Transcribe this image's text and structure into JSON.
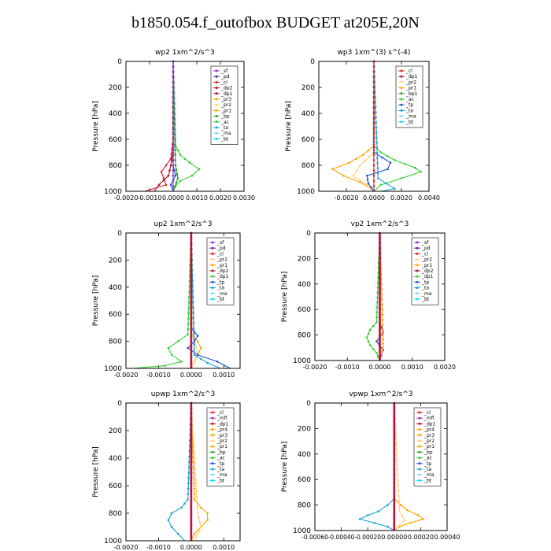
{
  "page_title": "b1850.054.f_outofbox  BUDGET at205E,20N",
  "colors": {
    "sf": "#9a2bd0",
    "pd": "#5a2a8a",
    "cl": "#e02020",
    "dp": "#b01030",
    "pr": "#ffa500",
    "pr_light": "#ffd27a",
    "bp": "#2f9b2f",
    "ac": "#2fd22f",
    "tp": "#2050d0",
    "ta": "#1aa3d8",
    "ma": "#7fd8f5",
    "bt": "#00e0ff",
    "prof": "#c0103a"
  },
  "chart_data": [
    {
      "type": "line",
      "title": "wp2   1xm^2/s^3",
      "ylabel": "Pressure  [hPa]",
      "xlim": [
        -0.002,
        0.003
      ],
      "ylim": [
        1000,
        0
      ],
      "xticks": [
        "-0.0020",
        "-0.0010",
        "0.0000",
        "0.0010",
        "0.0020",
        "0.0030"
      ],
      "xtick_values": [
        -0.002,
        -0.001,
        0.0,
        0.001,
        0.002,
        0.003
      ],
      "yticks": [
        "0",
        "200",
        "400",
        "600",
        "800",
        "1000"
      ],
      "legend": [
        "_sf",
        "_pd",
        "_cl",
        "_dp2",
        "_dp1",
        "_pr3",
        "_pr2",
        "_pr1",
        "_bp",
        "_ac",
        "_ta",
        "_ma",
        "_bt"
      ],
      "legend_colors": [
        "sf",
        "pd",
        "cl",
        "dp",
        "dp",
        "pr",
        "pr_light",
        "pr",
        "bp",
        "ac",
        "ta",
        "ma",
        "bt"
      ],
      "series": [
        {
          "color": "cl",
          "p": [
            0,
            600,
            750,
            800,
            850,
            900,
            950,
            1000
          ],
          "v": [
            0,
            0,
            -0.0001,
            -0.0003,
            -0.0005,
            -0.0004,
            -0.0003,
            -0.0012
          ]
        },
        {
          "color": "dp",
          "p": [
            0,
            700,
            800,
            880,
            950,
            1000
          ],
          "v": [
            0,
            0,
            -0.0001,
            -0.0002,
            -0.0006,
            -0.0008
          ]
        },
        {
          "color": "ac",
          "p": [
            0,
            650,
            720,
            780,
            830,
            880,
            920,
            960,
            1000
          ],
          "v": [
            0,
            0.0001,
            0.0003,
            0.0007,
            0.0011,
            0.0008,
            0.0003,
            0.0001,
            0
          ]
        },
        {
          "color": "bp",
          "p": [
            0,
            800,
            900,
            1000
          ],
          "v": [
            0,
            0.0001,
            0.0002,
            0
          ]
        },
        {
          "color": "tp",
          "p": [
            0,
            800,
            880,
            950,
            1000
          ],
          "v": [
            0,
            0,
            0.0001,
            -0.0001,
            0
          ]
        },
        {
          "color": "sf",
          "p": [
            0,
            1000
          ],
          "v": [
            0,
            0
          ]
        }
      ]
    },
    {
      "type": "line",
      "title": "wp3   1xm^(3) s^(-4)",
      "ylabel": "Pressure  [hPa]",
      "xlim": [
        -0.004,
        0.004
      ],
      "ylim": [
        1000,
        0
      ],
      "xticks": [
        "-0.0020",
        "0.0000",
        "0.0020",
        "0.0040"
      ],
      "xtick_values": [
        -0.002,
        0.0,
        0.002,
        0.004
      ],
      "yticks": [
        "0",
        "200",
        "400",
        "600",
        "800",
        "1000"
      ],
      "legend": [
        "_cl",
        "_dp1",
        "_pr2",
        "_pr1",
        "_bp1",
        "_ac",
        "_tp",
        "_ta",
        "_ma",
        "_bt"
      ],
      "legend_colors": [
        "cl",
        "dp",
        "pr_light",
        "pr",
        "bp",
        "ac",
        "tp",
        "ta",
        "ma",
        "bt"
      ],
      "series": [
        {
          "color": "ac",
          "p": [
            0,
            650,
            700,
            760,
            820,
            850,
            900,
            950,
            1000
          ],
          "v": [
            0,
            0,
            0.0005,
            0.0015,
            0.003,
            0.0034,
            0.002,
            0.0005,
            0
          ]
        },
        {
          "color": "pr",
          "p": [
            0,
            650,
            720,
            780,
            830,
            880,
            930,
            980,
            1000
          ],
          "v": [
            0,
            0,
            -0.0008,
            -0.0018,
            -0.003,
            -0.0022,
            -0.001,
            -0.0002,
            0
          ]
        },
        {
          "color": "pr_light",
          "p": [
            0,
            700,
            800,
            880,
            950,
            1000
          ],
          "v": [
            0,
            0,
            -0.001,
            -0.0015,
            -0.0005,
            0
          ]
        },
        {
          "color": "tp",
          "p": [
            0,
            700,
            780,
            830,
            880,
            940,
            1000
          ],
          "v": [
            0,
            0,
            0.0012,
            0.001,
            -0.0005,
            -0.0004,
            0
          ]
        },
        {
          "color": "ta",
          "p": [
            0,
            900,
            980,
            1000
          ],
          "v": [
            0,
            0.0003,
            0.0015,
            0.0005
          ]
        },
        {
          "color": "cl",
          "p": [
            0,
            1000
          ],
          "v": [
            0,
            0
          ]
        }
      ]
    },
    {
      "type": "line",
      "title": "up2   1xm^2/s^3",
      "ylabel": "Pressure  [hPa]",
      "xlim": [
        -0.002,
        0.0015
      ],
      "ylim": [
        1000,
        0
      ],
      "xticks": [
        "-0.0020",
        "-0.0010",
        "0.0000",
        "0.0010"
      ],
      "xtick_values": [
        -0.002,
        -0.001,
        0.0,
        0.001
      ],
      "yticks": [
        "0",
        "200",
        "400",
        "600",
        "800",
        "1000"
      ],
      "legend": [
        "_sf",
        "_pd",
        "_cl",
        "_pr2",
        "_pr1",
        "_dp2",
        "_dp1",
        "_tp",
        "_ta",
        "_ma",
        "_bt"
      ],
      "legend_colors": [
        "sf",
        "pd",
        "cl",
        "pr_light",
        "pr",
        "dp",
        "ac",
        "tp",
        "ta",
        "ma",
        "bt"
      ],
      "series": [
        {
          "color": "ac",
          "p": [
            0,
            750,
            800,
            850,
            900,
            950,
            980,
            1000
          ],
          "v": [
            0,
            -0.0001,
            -0.0004,
            -0.0007,
            -0.0006,
            -0.0003,
            -0.0008,
            -0.0018
          ]
        },
        {
          "color": "pr",
          "p": [
            0,
            750,
            800,
            850,
            900,
            950,
            1000
          ],
          "v": [
            0,
            0,
            0.0002,
            0.0003,
            0.0002,
            0.0001,
            0
          ]
        },
        {
          "color": "pr_light",
          "p": [
            0,
            800,
            880,
            950,
            1000
          ],
          "v": [
            0,
            0.0001,
            0.0002,
            0.0001,
            0
          ]
        },
        {
          "color": "tp",
          "p": [
            0,
            700,
            760,
            800,
            850,
            900,
            950,
            1000
          ],
          "v": [
            0,
            0,
            0.0002,
            0.0001,
            -0.0001,
            0.0002,
            0.0008,
            0.0012
          ]
        },
        {
          "color": "ta",
          "p": [
            0,
            900,
            960,
            1000
          ],
          "v": [
            0,
            0.0001,
            0.0005,
            0.0009
          ]
        },
        {
          "color": "sf",
          "p": [
            0,
            1000
          ],
          "v": [
            0,
            0
          ]
        },
        {
          "color": "prof",
          "p": [
            0,
            1000
          ],
          "v": [
            0,
            0
          ]
        }
      ]
    },
    {
      "type": "line",
      "title": "vp2   1xm^2/s^3",
      "ylabel": "Pressure  [hPa]",
      "xlim": [
        -0.002,
        0.002
      ],
      "ylim": [
        1000,
        0
      ],
      "xticks": [
        "-0.0020",
        "-0.0010",
        "0.0000",
        "0.0010",
        "0.0020"
      ],
      "xtick_values": [
        -0.002,
        -0.001,
        0.0,
        0.001,
        0.002
      ],
      "yticks": [
        "0",
        "200",
        "400",
        "600",
        "800",
        "1000"
      ],
      "legend": [
        "_sf",
        "_pd",
        "_cl",
        "_pr2",
        "_pr1",
        "_dp2",
        "_dp1",
        "_tp",
        "_ta",
        "_ma",
        "_bt"
      ],
      "legend_colors": [
        "sf",
        "pd",
        "cl",
        "pr_light",
        "pr",
        "dp",
        "ac",
        "tp",
        "ta",
        "ma",
        "bt"
      ],
      "series": [
        {
          "color": "ac",
          "p": [
            0,
            700,
            760,
            820,
            880,
            940,
            1000
          ],
          "v": [
            0,
            -0.0001,
            -0.0003,
            -0.0004,
            -0.0003,
            -0.0001,
            0
          ]
        },
        {
          "color": "tp",
          "p": [
            0,
            700,
            780,
            850,
            920,
            1000
          ],
          "v": [
            0,
            0,
            0.0001,
            -0.0001,
            0.0001,
            0
          ]
        },
        {
          "color": "pr",
          "p": [
            0,
            800,
            900,
            1000
          ],
          "v": [
            0,
            0.0001,
            0.0001,
            0
          ]
        },
        {
          "color": "sf",
          "p": [
            0,
            1000
          ],
          "v": [
            0,
            0
          ]
        },
        {
          "color": "prof",
          "p": [
            0,
            1000
          ],
          "v": [
            0,
            0
          ]
        }
      ]
    },
    {
      "type": "line",
      "title": "upwp   1xm^2/s^3",
      "ylabel": "Pressure  [hPa]",
      "xlim": [
        -0.002,
        0.0015
      ],
      "ylim": [
        1000,
        0
      ],
      "xticks": [
        "-0.0020",
        "-0.0010",
        "0.0000",
        "0.0010"
      ],
      "xtick_values": [
        -0.002,
        -0.001,
        0.0,
        0.001
      ],
      "yticks": [
        "0",
        "200",
        "400",
        "600",
        "800",
        "1000"
      ],
      "legend": [
        "_cl",
        "_mfl",
        "_dp1",
        "_pr4",
        "_pr3",
        "_pr2",
        "_pr1",
        "_bp",
        "_ac",
        "_tp",
        "_ta",
        "_ma",
        "_bt"
      ],
      "legend_colors": [
        "cl",
        "sf",
        "dp",
        "pr",
        "pr",
        "pr_light",
        "pr",
        "bp",
        "ac",
        "tp",
        "ta",
        "ma",
        "bt"
      ],
      "series": [
        {
          "color": "ta",
          "p": [
            0,
            700,
            760,
            800,
            850,
            900,
            950,
            1000
          ],
          "v": [
            0,
            -0.0001,
            -0.0003,
            -0.0006,
            -0.0007,
            -0.0006,
            -0.0004,
            -0.0002
          ]
        },
        {
          "color": "pr",
          "p": [
            0,
            700,
            760,
            800,
            850,
            900,
            950,
            1000
          ],
          "v": [
            0,
            0.0001,
            0.0003,
            0.0005,
            0.0005,
            0.0003,
            0.0001,
            0
          ]
        },
        {
          "color": "pr_light",
          "p": [
            0,
            800,
            900,
            1000
          ],
          "v": [
            0,
            0.0002,
            0.0003,
            0.0001
          ]
        },
        {
          "color": "sf",
          "p": [
            0,
            1000
          ],
          "v": [
            0,
            0
          ]
        },
        {
          "color": "prof",
          "p": [
            0,
            1000
          ],
          "v": [
            0,
            0
          ]
        }
      ]
    },
    {
      "type": "line",
      "title": "vpwp   1xm^2/s^3",
      "ylabel": "Pressure  [hPa]",
      "xlim": [
        -0.0006,
        0.0004
      ],
      "ylim": [
        1000,
        0
      ],
      "xticks": [
        "-0.00060",
        "-0.00040",
        "-0.00020",
        "0.00000",
        "0.00020",
        "0.00040"
      ],
      "xtick_values": [
        -0.0006,
        -0.0004,
        -0.0002,
        0.0,
        0.0002,
        0.0004
      ],
      "yticks": [
        "0",
        "200",
        "400",
        "600",
        "800",
        "1000"
      ],
      "legend": [
        "_cl",
        "_mfl",
        "_dp1",
        "_pr4",
        "_pr3",
        "_pr2",
        "_pr1",
        "_bp",
        "_ac",
        "_tp",
        "_ta",
        "_ma",
        "_bt"
      ],
      "legend_colors": [
        "cl",
        "sf",
        "dp",
        "pr",
        "pr",
        "pr_light",
        "pr",
        "bp",
        "ac",
        "tp",
        "ta",
        "ma",
        "bt"
      ],
      "series": [
        {
          "color": "pr",
          "p": [
            0,
            750,
            800,
            840,
            880,
            910,
            940,
            970,
            1000
          ],
          "v": [
            0,
            0,
            5e-05,
            0.0001,
            0.00018,
            0.00022,
            0.00012,
            4e-05,
            0
          ]
        },
        {
          "color": "ta",
          "p": [
            0,
            750,
            800,
            850,
            880,
            910,
            940,
            970,
            1000
          ],
          "v": [
            0,
            0,
            -5e-05,
            -0.00012,
            -0.0002,
            -0.00026,
            -0.00015,
            -5e-05,
            0
          ]
        },
        {
          "color": "pr_light",
          "p": [
            0,
            850,
            920,
            1000
          ],
          "v": [
            0,
            4e-05,
            8e-05,
            0
          ]
        },
        {
          "color": "sf",
          "p": [
            0,
            1000
          ],
          "v": [
            0,
            0
          ]
        },
        {
          "color": "prof",
          "p": [
            0,
            1000
          ],
          "v": [
            0,
            0
          ]
        }
      ]
    }
  ]
}
